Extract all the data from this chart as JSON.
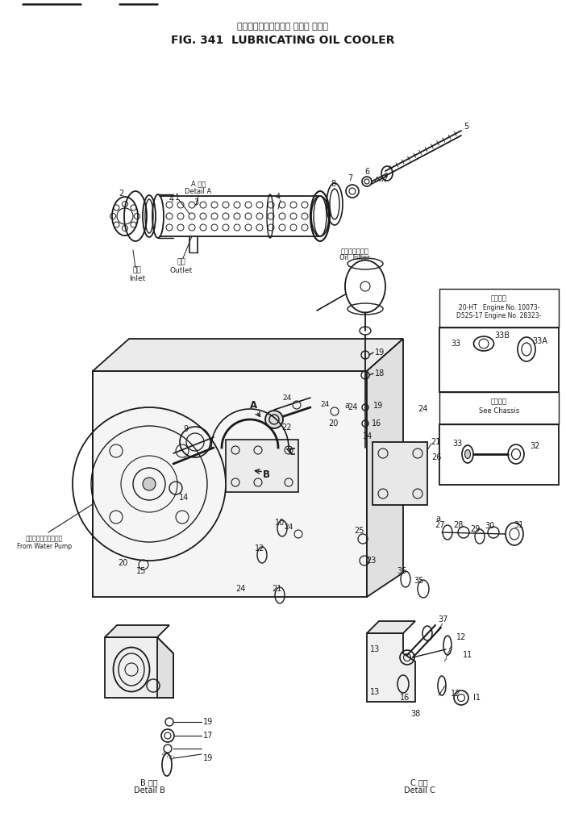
{
  "title_japanese": "ルーブリケーティング オイル クーラ",
  "title_english": "FIG. 341  LUBRICATING OIL COOLER",
  "bg_color": "#ffffff",
  "fig_width": 7.02,
  "fig_height": 10.24,
  "dpi": 100,
  "ink": "#1a1a1a",
  "labels": {
    "inlet": "入口\nInlet",
    "outlet": "出口\nOutlet",
    "oil_filter_jp": "オイルフィルタ",
    "oil_filter_en": "Oil  Filter",
    "from_water_pump_jp": "フォーターポンプから",
    "from_water_pump_en": "From Water Pump",
    "detail_a_jp": "A 詳細",
    "detail_a_en": "Detail A",
    "detail_b_jp": "B 詳細",
    "detail_b_en": "Detail B",
    "detail_c_jp": "C 詳細",
    "detail_c_en": "Detail C",
    "engine_note1": "20-HT   Engine No. 10073-",
    "engine_note2": "D52S-17 Engine No. 28323-",
    "see_chassis_jp": "車体参照",
    "see_chassis_en": "See Chassis",
    "applicable_jp": "適用番号"
  }
}
